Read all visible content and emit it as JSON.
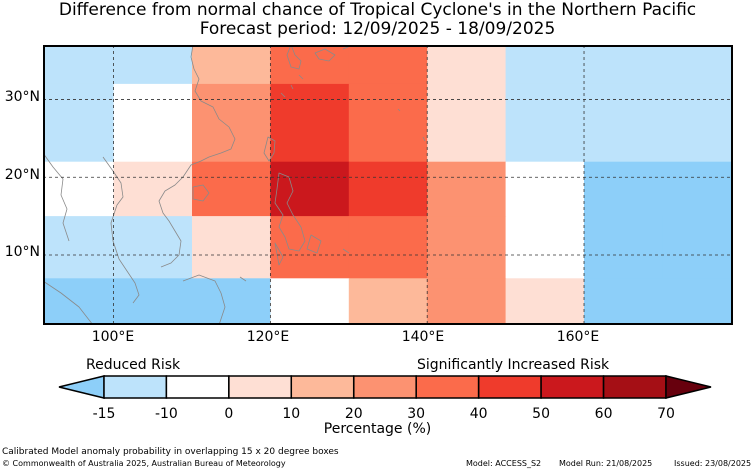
{
  "title": "Difference from normal chance of Tropical Cyclone's in the Northern Pacific",
  "subtitle": "Forecast period: 12/09/2025 - 18/09/2025",
  "y_ticks": [
    "30°N",
    "20°N",
    "10°N"
  ],
  "x_ticks": [
    "100°E",
    "120°E",
    "140°E",
    "160°E"
  ],
  "colorbar": {
    "left_label": "Reduced Risk",
    "right_label": "Significantly Increased Risk",
    "tick_labels": [
      "-15",
      "-10",
      "0",
      "10",
      "20",
      "30",
      "40",
      "50",
      "60",
      "70"
    ],
    "title": "Percentage (%)",
    "colors": [
      "#bde3fb",
      "#ffffff",
      "#fedfd4",
      "#fdb99a",
      "#fc9271",
      "#fb6b4b",
      "#ef3b2c",
      "#cb181d",
      "#a50f15"
    ],
    "under_color": "#8dcff9",
    "over_color": "#67000d"
  },
  "footer": {
    "note": "Calibrated Model anomaly probability in overlapping 15 x 20 degree boxes",
    "copyright": "© Commonwealth of Australia 2025, Australian Bureau of Meteorology",
    "model": "Model: ACCESS_S2",
    "model_run": "Model Run: 21/08/2025",
    "issued": "Issued: 23/08/2025"
  },
  "chart_data": {
    "type": "heatmap",
    "region": "Northern Pacific",
    "units": "%",
    "xlim": [
      91,
      179
    ],
    "ylim": [
      1,
      37
    ],
    "value_legend": {
      "-15": "< -10",
      "-10": "-10 to 0",
      "0": "0 to 10",
      "10": "10 to 20",
      "20": "20 to 30",
      "30": "30 to 40",
      "40": "40 to 50",
      "50": "50 to 60",
      "60": "60 to 70"
    },
    "cells": [
      {
        "lon": [
          91,
          100
        ],
        "lat": [
          32,
          37
        ],
        "value": -10
      },
      {
        "lon": [
          100,
          110
        ],
        "lat": [
          32,
          37
        ],
        "value": -10
      },
      {
        "lon": [
          110,
          120
        ],
        "lat": [
          32,
          37
        ],
        "value": 20
      },
      {
        "lon": [
          120,
          130
        ],
        "lat": [
          32,
          37
        ],
        "value": 40
      },
      {
        "lon": [
          130,
          140
        ],
        "lat": [
          32,
          37
        ],
        "value": 40
      },
      {
        "lon": [
          140,
          150
        ],
        "lat": [
          32,
          37
        ],
        "value": 10
      },
      {
        "lon": [
          150,
          179
        ],
        "lat": [
          32,
          37
        ],
        "value": -10
      },
      {
        "lon": [
          91,
          100
        ],
        "lat": [
          22,
          32
        ],
        "value": -10
      },
      {
        "lon": [
          100,
          110
        ],
        "lat": [
          22,
          32
        ],
        "value": 0
      },
      {
        "lon": [
          110,
          120
        ],
        "lat": [
          22,
          32
        ],
        "value": 30
      },
      {
        "lon": [
          120,
          130
        ],
        "lat": [
          22,
          32
        ],
        "value": 50
      },
      {
        "lon": [
          130,
          140
        ],
        "lat": [
          22,
          32
        ],
        "value": 40
      },
      {
        "lon": [
          140,
          150
        ],
        "lat": [
          22,
          32
        ],
        "value": 10
      },
      {
        "lon": [
          150,
          179
        ],
        "lat": [
          22,
          32
        ],
        "value": -10
      },
      {
        "lon": [
          91,
          100
        ],
        "lat": [
          15,
          22
        ],
        "value": 0
      },
      {
        "lon": [
          100,
          110
        ],
        "lat": [
          15,
          22
        ],
        "value": 10
      },
      {
        "lon": [
          110,
          120
        ],
        "lat": [
          15,
          22
        ],
        "value": 40
      },
      {
        "lon": [
          120,
          130
        ],
        "lat": [
          15,
          22
        ],
        "value": 60
      },
      {
        "lon": [
          130,
          140
        ],
        "lat": [
          15,
          22
        ],
        "value": 50
      },
      {
        "lon": [
          140,
          150
        ],
        "lat": [
          15,
          22
        ],
        "value": 30
      },
      {
        "lon": [
          150,
          160
        ],
        "lat": [
          15,
          22
        ],
        "value": 0
      },
      {
        "lon": [
          160,
          179
        ],
        "lat": [
          15,
          22
        ],
        "value": -15
      },
      {
        "lon": [
          91,
          100
        ],
        "lat": [
          7,
          15
        ],
        "value": -10
      },
      {
        "lon": [
          100,
          110
        ],
        "lat": [
          7,
          15
        ],
        "value": -10
      },
      {
        "lon": [
          110,
          120
        ],
        "lat": [
          7,
          15
        ],
        "value": 10
      },
      {
        "lon": [
          120,
          130
        ],
        "lat": [
          7,
          15
        ],
        "value": 40
      },
      {
        "lon": [
          130,
          140
        ],
        "lat": [
          7,
          15
        ],
        "value": 40
      },
      {
        "lon": [
          140,
          150
        ],
        "lat": [
          7,
          15
        ],
        "value": 30
      },
      {
        "lon": [
          150,
          160
        ],
        "lat": [
          7,
          15
        ],
        "value": 0
      },
      {
        "lon": [
          160,
          170
        ],
        "lat": [
          7,
          15
        ],
        "value": -15
      },
      {
        "lon": [
          170,
          179
        ],
        "lat": [
          7,
          15
        ],
        "value": -15
      },
      {
        "lon": [
          91,
          100
        ],
        "lat": [
          1,
          7
        ],
        "value": -15
      },
      {
        "lon": [
          100,
          110
        ],
        "lat": [
          1,
          7
        ],
        "value": -15
      },
      {
        "lon": [
          110,
          120
        ],
        "lat": [
          1,
          7
        ],
        "value": -15
      },
      {
        "lon": [
          120,
          130
        ],
        "lat": [
          1,
          7
        ],
        "value": 0
      },
      {
        "lon": [
          130,
          140
        ],
        "lat": [
          1,
          7
        ],
        "value": 20
      },
      {
        "lon": [
          140,
          150
        ],
        "lat": [
          1,
          7
        ],
        "value": 30
      },
      {
        "lon": [
          150,
          160
        ],
        "lat": [
          1,
          7
        ],
        "value": 10
      },
      {
        "lon": [
          160,
          179
        ],
        "lat": [
          1,
          7
        ],
        "value": -15
      }
    ],
    "gridlines_lon": [
      100,
      120,
      140,
      160
    ],
    "gridlines_lat": [
      10,
      20,
      30
    ],
    "coastline_color": "#8a8a8a"
  }
}
